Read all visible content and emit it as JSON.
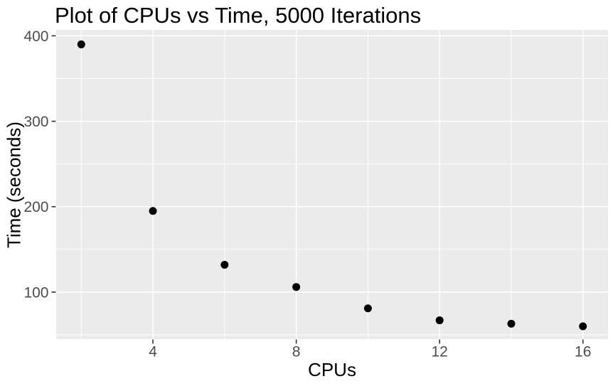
{
  "chart_data": {
    "type": "scatter",
    "title": "Plot of CPUs vs Time, 5000 Iterations",
    "xlabel": "CPUs",
    "ylabel": "Time (seconds)",
    "x": [
      2,
      4,
      6,
      8,
      10,
      12,
      14,
      16
    ],
    "y": [
      390,
      195,
      132,
      106,
      81,
      67,
      63,
      60
    ],
    "xlim": [
      1.3,
      16.7
    ],
    "ylim": [
      45,
      407
    ],
    "x_major_ticks": {
      "values": [
        4,
        8,
        12,
        16
      ],
      "labels": [
        "4",
        "8",
        "12",
        "16"
      ]
    },
    "x_minor_ticks": [
      2,
      6,
      10,
      14
    ],
    "y_major_ticks": {
      "values": [
        100,
        200,
        300,
        400
      ],
      "labels": [
        "100",
        "200",
        "300",
        "400"
      ]
    },
    "y_minor_ticks": [
      50,
      150,
      250,
      350
    ],
    "grid": "on",
    "legend": "none",
    "colors": {
      "panel_background": "#EBEBEB",
      "grid": "#FFFFFF",
      "point": "#000000",
      "tick_mark": "#333333",
      "tick_label": "#4D4D4D",
      "title": "#000000",
      "axis_title": "#000000",
      "figure_background": "#FFFFFF"
    }
  }
}
